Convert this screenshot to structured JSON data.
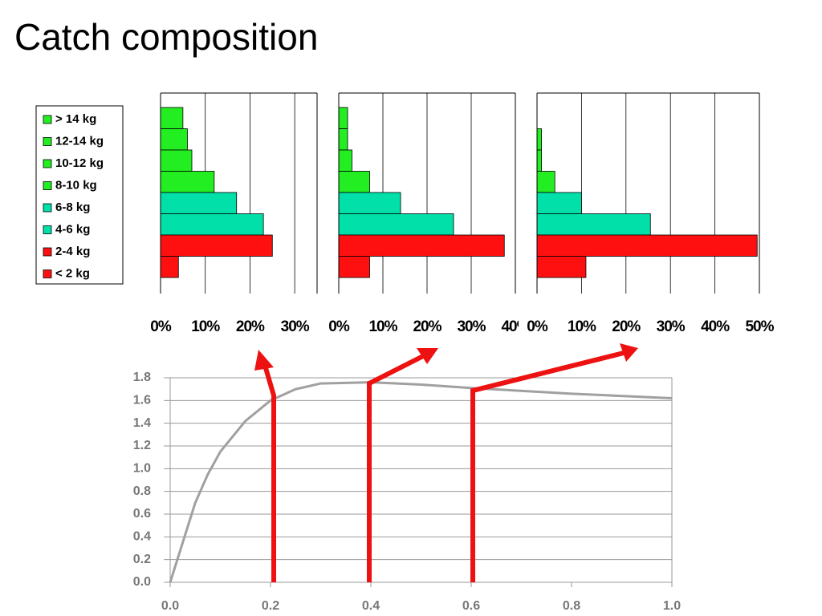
{
  "title": "Catch composition",
  "chart_data": [
    {
      "type": "hbar",
      "categories": [
        "> 14 kg",
        "12-14 kg",
        "10-12 kg",
        "8-10 kg",
        "6-8 kg",
        "4-6 kg",
        "2-4 kg",
        "< 2 kg"
      ],
      "colors": [
        "#22ee22",
        "#22ee22",
        "#22ee22",
        "#22ee22",
        "#00e0a8",
        "#00e0a8",
        "#ff1010",
        "#ff1010"
      ],
      "values": [
        5,
        6,
        7,
        12,
        17,
        23,
        25,
        4
      ],
      "xlim": [
        0,
        35
      ],
      "xticks": [
        {
          "value": 0,
          "label": "0%"
        },
        {
          "value": 10,
          "label": "10%"
        },
        {
          "value": 20,
          "label": "20%"
        },
        {
          "value": 30,
          "label": "30%"
        }
      ],
      "grid": true
    },
    {
      "type": "hbar",
      "values": [
        2,
        2,
        3,
        7,
        14,
        26,
        37.5,
        7
      ],
      "xlim": [
        0,
        40
      ],
      "xticks": [
        {
          "value": 0,
          "label": "0%"
        },
        {
          "value": 10,
          "label": "10%"
        },
        {
          "value": 20,
          "label": "20%"
        },
        {
          "value": 30,
          "label": "30%"
        },
        {
          "value": 40,
          "label": "40%"
        }
      ],
      "grid": true
    },
    {
      "type": "hbar",
      "values": [
        0,
        1,
        1,
        4,
        10,
        25.5,
        49.5,
        11
      ],
      "xlim": [
        0,
        50
      ],
      "xticks": [
        {
          "value": 0,
          "label": "0%"
        },
        {
          "value": 10,
          "label": "10%"
        },
        {
          "value": 20,
          "label": "20%"
        },
        {
          "value": 30,
          "label": "30%"
        },
        {
          "value": 40,
          "label": "40%"
        },
        {
          "value": 50,
          "label": "50%"
        }
      ],
      "grid": true
    },
    {
      "type": "line",
      "color": "#a0a0a0",
      "x": [
        0,
        0.025,
        0.05,
        0.075,
        0.1,
        0.15,
        0.2,
        0.25,
        0.3,
        0.4,
        0.5,
        0.6,
        0.8,
        1.0
      ],
      "values": [
        0,
        0.35,
        0.7,
        0.95,
        1.15,
        1.42,
        1.6,
        1.7,
        1.75,
        1.76,
        1.74,
        1.71,
        1.66,
        1.62
      ],
      "xlim": [
        0,
        1
      ],
      "ylim": [
        0,
        1.8
      ],
      "xticks": [
        {
          "value": 0,
          "label": "0.0"
        },
        0.2,
        0.4,
        0.6,
        0.8,
        {
          "value": 1,
          "label": "1.0"
        }
      ],
      "yticks": [
        {
          "value": 0,
          "label": "0.0"
        },
        0.2,
        0.4,
        0.6,
        0.8,
        {
          "value": 1,
          "label": "1.0"
        },
        1.2,
        1.4,
        1.6,
        1.8
      ],
      "grid": true
    }
  ]
}
